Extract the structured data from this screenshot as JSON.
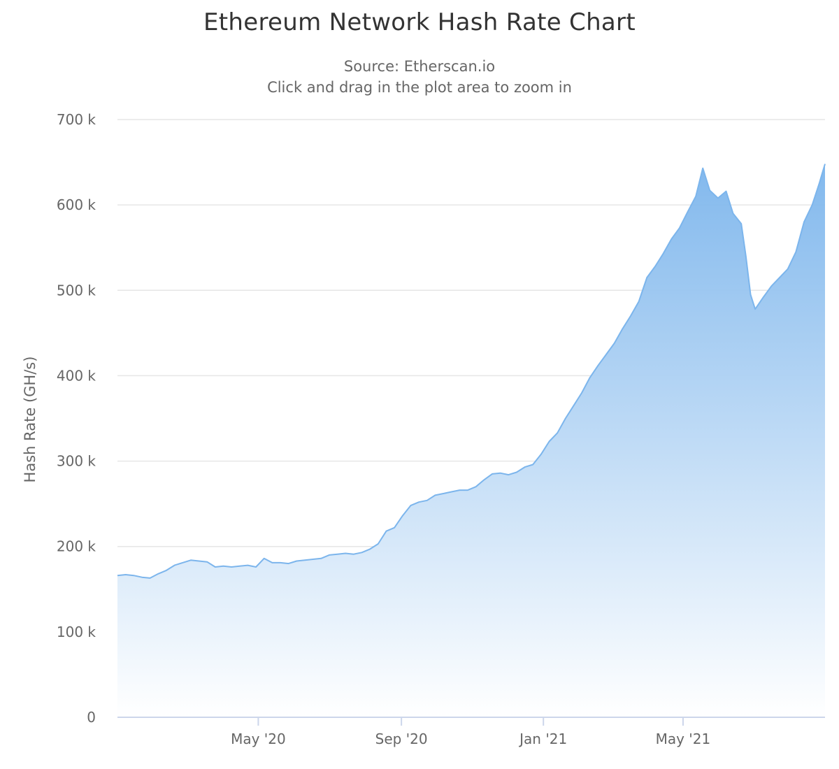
{
  "title": "Ethereum Network Hash Rate Chart",
  "subtitle_lines": [
    "Source: Etherscan.io",
    "Click and drag in the plot area to zoom in"
  ],
  "colors": {
    "line": "#7cb5ec",
    "fill_top": "#7cb5ec",
    "fill_bottom": "#ffffff",
    "grid": "#e6e6e6",
    "axis": "#ccd6eb",
    "text": "#666666",
    "title": "#333333"
  },
  "chart_data": {
    "type": "area",
    "title": "Ethereum Network Hash Rate Chart",
    "subtitle": "Source: Etherscan.io",
    "ylabel": "Hash Rate (GH/s)",
    "xlabel": "",
    "ylim": [
      0,
      700000
    ],
    "xlim": [
      "2020-01-01",
      "2021-08-31"
    ],
    "yticks": [
      0,
      100000,
      200000,
      300000,
      400000,
      500000,
      600000,
      700000
    ],
    "ytick_labels": [
      "0",
      "100 k",
      "200 k",
      "300 k",
      "400 k",
      "500 k",
      "600 k",
      "700 k"
    ],
    "xticks": [
      "2020-05-01",
      "2020-09-01",
      "2021-01-01",
      "2021-05-01"
    ],
    "xtick_labels": [
      "May '20",
      "Sep '20",
      "Jan '21",
      "May '21"
    ],
    "grid": true,
    "legend": "none",
    "series": [
      {
        "points": [
          [
            "2020-01-01",
            166000
          ],
          [
            "2020-01-08",
            167000
          ],
          [
            "2020-01-15",
            166000
          ],
          [
            "2020-01-22",
            164000
          ],
          [
            "2020-01-29",
            163000
          ],
          [
            "2020-02-05",
            168000
          ],
          [
            "2020-02-12",
            172000
          ],
          [
            "2020-02-19",
            178000
          ],
          [
            "2020-02-26",
            181000
          ],
          [
            "2020-03-04",
            184000
          ],
          [
            "2020-03-11",
            183000
          ],
          [
            "2020-03-18",
            182000
          ],
          [
            "2020-03-25",
            176000
          ],
          [
            "2020-04-01",
            177000
          ],
          [
            "2020-04-08",
            176000
          ],
          [
            "2020-04-15",
            177000
          ],
          [
            "2020-04-22",
            178000
          ],
          [
            "2020-04-29",
            176000
          ],
          [
            "2020-05-06",
            186000
          ],
          [
            "2020-05-13",
            181000
          ],
          [
            "2020-05-20",
            181000
          ],
          [
            "2020-05-27",
            180000
          ],
          [
            "2020-06-03",
            183000
          ],
          [
            "2020-06-10",
            184000
          ],
          [
            "2020-06-17",
            185000
          ],
          [
            "2020-06-24",
            186000
          ],
          [
            "2020-07-01",
            190000
          ],
          [
            "2020-07-08",
            191000
          ],
          [
            "2020-07-15",
            192000
          ],
          [
            "2020-07-22",
            191000
          ],
          [
            "2020-07-29",
            193000
          ],
          [
            "2020-08-05",
            197000
          ],
          [
            "2020-08-12",
            203000
          ],
          [
            "2020-08-19",
            218000
          ],
          [
            "2020-08-26",
            222000
          ],
          [
            "2020-09-02",
            236000
          ],
          [
            "2020-09-09",
            248000
          ],
          [
            "2020-09-16",
            252000
          ],
          [
            "2020-09-23",
            254000
          ],
          [
            "2020-09-30",
            260000
          ],
          [
            "2020-10-07",
            262000
          ],
          [
            "2020-10-14",
            264000
          ],
          [
            "2020-10-21",
            266000
          ],
          [
            "2020-10-28",
            266000
          ],
          [
            "2020-11-04",
            270000
          ],
          [
            "2020-11-11",
            278000
          ],
          [
            "2020-11-18",
            285000
          ],
          [
            "2020-11-25",
            286000
          ],
          [
            "2020-12-02",
            284000
          ],
          [
            "2020-12-09",
            287000
          ],
          [
            "2020-12-16",
            293000
          ],
          [
            "2020-12-23",
            296000
          ],
          [
            "2020-12-30",
            308000
          ],
          [
            "2021-01-06",
            323000
          ],
          [
            "2021-01-13",
            333000
          ],
          [
            "2021-01-20",
            350000
          ],
          [
            "2021-01-27",
            365000
          ],
          [
            "2021-02-03",
            380000
          ],
          [
            "2021-02-10",
            398000
          ],
          [
            "2021-02-17",
            412000
          ],
          [
            "2021-02-24",
            425000
          ],
          [
            "2021-03-03",
            438000
          ],
          [
            "2021-03-10",
            455000
          ],
          [
            "2021-03-17",
            470000
          ],
          [
            "2021-03-24",
            487000
          ],
          [
            "2021-03-31",
            515000
          ],
          [
            "2021-04-07",
            528000
          ],
          [
            "2021-04-14",
            543000
          ],
          [
            "2021-04-21",
            560000
          ],
          [
            "2021-04-28",
            573000
          ],
          [
            "2021-05-05",
            592000
          ],
          [
            "2021-05-12",
            610000
          ],
          [
            "2021-05-18",
            643000
          ],
          [
            "2021-05-24",
            617000
          ],
          [
            "2021-05-31",
            608000
          ],
          [
            "2021-06-07",
            616000
          ],
          [
            "2021-06-13",
            590000
          ],
          [
            "2021-06-20",
            578000
          ],
          [
            "2021-06-24",
            540000
          ],
          [
            "2021-06-28",
            495000
          ],
          [
            "2021-07-02",
            478000
          ],
          [
            "2021-07-09",
            492000
          ],
          [
            "2021-07-16",
            505000
          ],
          [
            "2021-07-23",
            515000
          ],
          [
            "2021-07-30",
            525000
          ],
          [
            "2021-08-06",
            545000
          ],
          [
            "2021-08-13",
            580000
          ],
          [
            "2021-08-20",
            600000
          ],
          [
            "2021-08-26",
            625000
          ],
          [
            "2021-08-31",
            648000
          ]
        ]
      }
    ]
  }
}
